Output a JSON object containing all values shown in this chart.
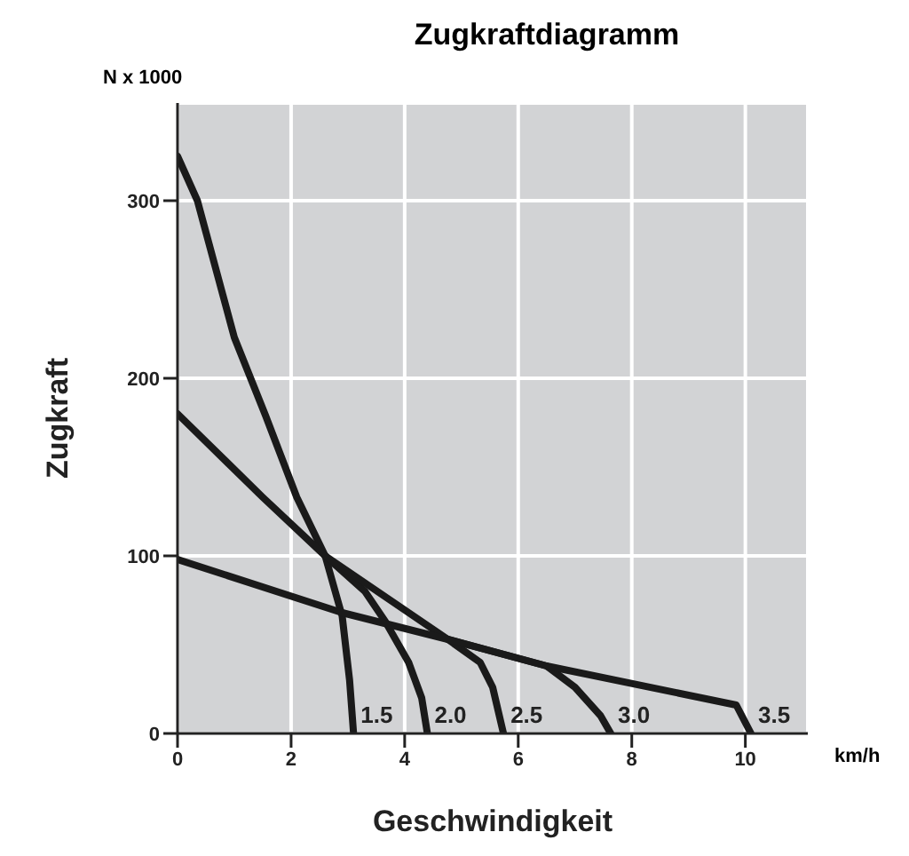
{
  "chart_data": {
    "type": "line",
    "title": "Zugkraftdiagramm",
    "xlabel": "Geschwindigkeit",
    "ylabel": "Zugkraft",
    "annotations": [
      "N x 1000",
      "km/h"
    ],
    "xlim": [
      0,
      11.1
    ],
    "ylim": [
      0,
      355
    ],
    "xticks": [
      0,
      2,
      4,
      6,
      8,
      10
    ],
    "yticks": [
      0,
      100,
      200,
      300
    ],
    "grid": true,
    "marker": "none",
    "line_style": "solid",
    "legend": false,
    "series": [
      {
        "name": "1.5",
        "color": "#1a1a1a",
        "x": [
          0,
          0.35,
          1.0,
          1.55,
          2.1,
          2.6,
          2.9,
          3.03,
          3.1
        ],
        "values": [
          325,
          300,
          223,
          179,
          133,
          100,
          66,
          30,
          0
        ]
      },
      {
        "name": "2.0",
        "color": "#1a1a1a",
        "x": [
          0,
          1.5,
          2.6,
          3.3,
          3.66,
          4.07,
          4.3,
          4.4
        ],
        "values": [
          180,
          133,
          100,
          80,
          63,
          40,
          20,
          0
        ]
      },
      {
        "name": "2.5",
        "color": "#1a1a1a",
        "x": [
          2.6,
          4.76,
          5.33,
          5.55,
          5.74
        ],
        "values": [
          100,
          53,
          40,
          26,
          0
        ]
      },
      {
        "name": "3.0",
        "color": "#1a1a1a",
        "x": [
          4.76,
          6.5,
          7.0,
          7.45,
          7.63
        ],
        "values": [
          53,
          38,
          26,
          10,
          0
        ]
      },
      {
        "name": "3.5",
        "color": "#1a1a1a",
        "x": [
          0,
          2.9,
          4.76,
          6.5,
          9.84,
          10.1
        ],
        "values": [
          98,
          68,
          53,
          38,
          16,
          0
        ]
      }
    ]
  }
}
